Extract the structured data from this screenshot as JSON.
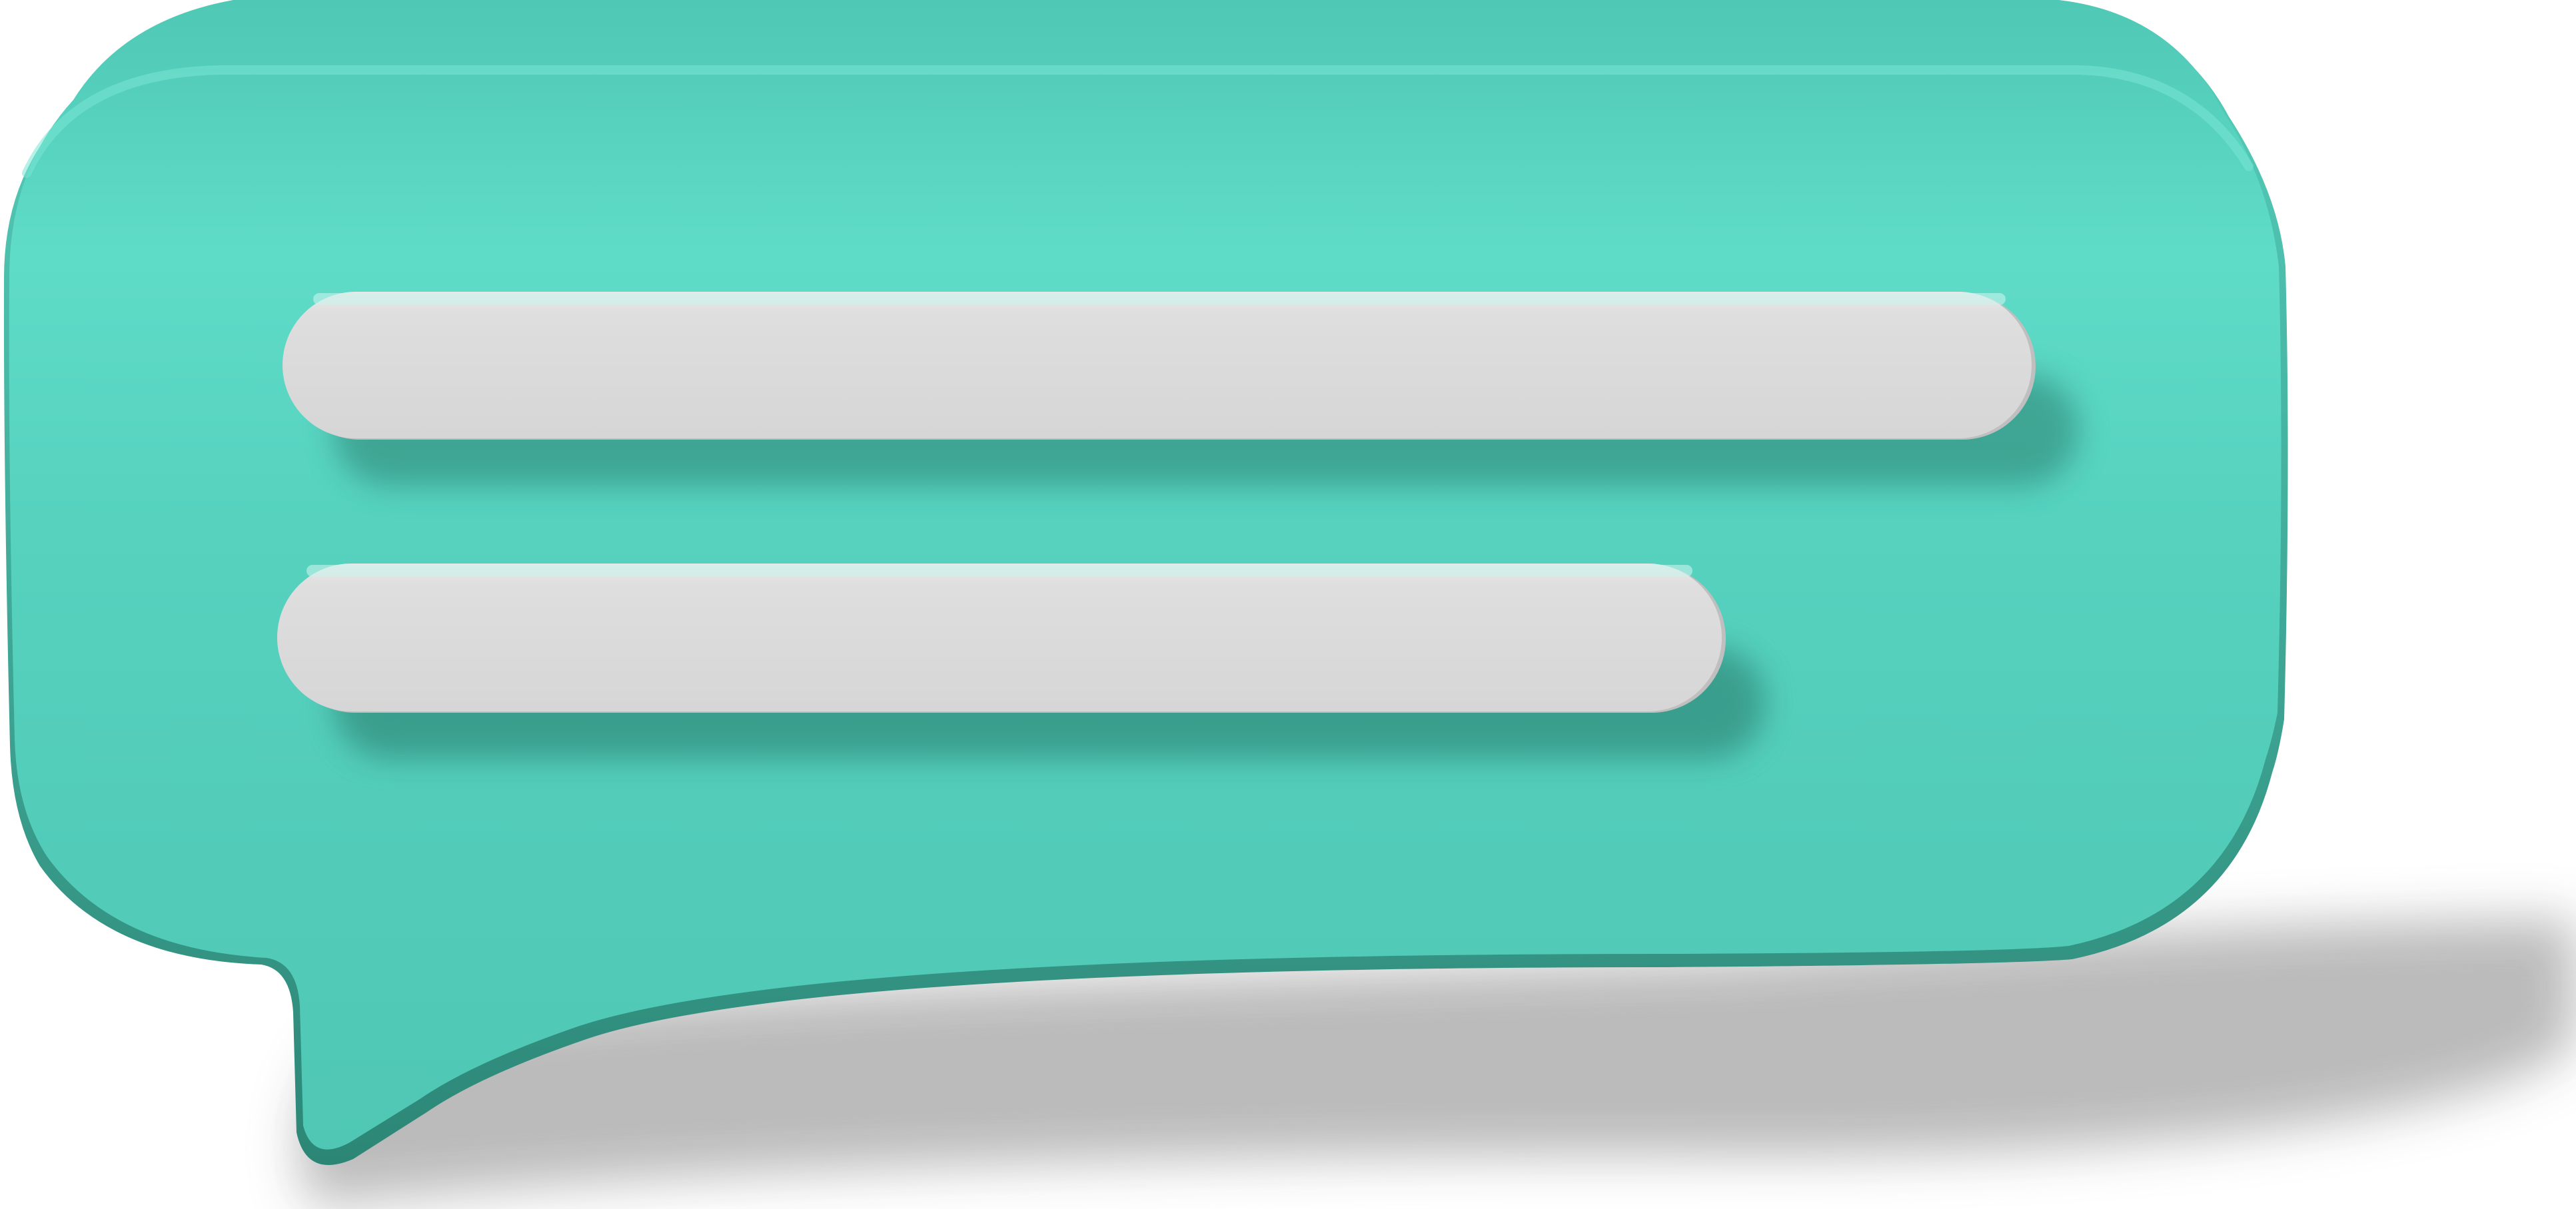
{
  "illustration": {
    "icon": "speech-bubble-icon",
    "lines_icon": "text-lines-icon",
    "line_count": 2,
    "colors": {
      "bubble": "#52cab7",
      "bubble_highlight": "#6fe3d0",
      "bubble_edge": "#2f8c7c",
      "line_fill": "#dcdcdc",
      "shadow": "#b5b5b5",
      "background": "#ffffff"
    }
  }
}
